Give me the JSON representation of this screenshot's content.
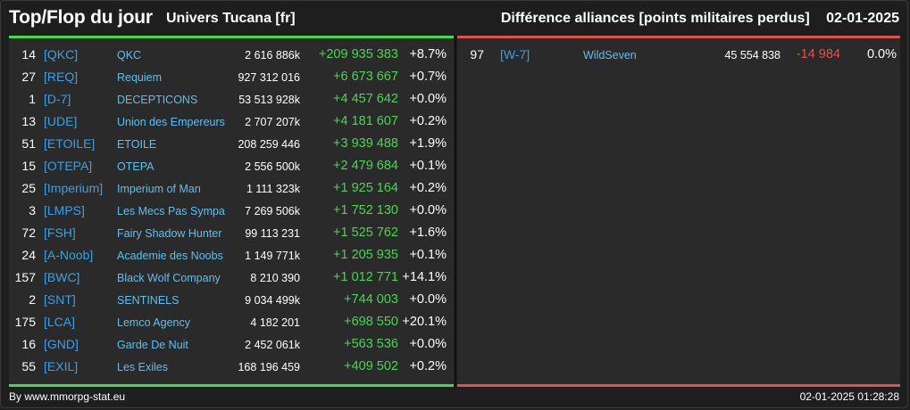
{
  "header": {
    "title": "Top/Flop du jour",
    "subtitle": "Univers Tucana [fr]",
    "category": "Différence alliances [points militaires perdus]",
    "date": "02-01-2025"
  },
  "top": [
    {
      "rank": "14",
      "tag": "[QKC]",
      "name": "QKC",
      "points": "2 616 886k",
      "diff": "+209 935 383",
      "pct": "+8.7%"
    },
    {
      "rank": "27",
      "tag": "[REQ]",
      "name": "Requiem",
      "points": "927 312 016",
      "diff": "+6 673 667",
      "pct": "+0.7%"
    },
    {
      "rank": "1",
      "tag": "[D-7]",
      "name": "DECEPTICONS",
      "points": "53 513 928k",
      "diff": "+4 457 642",
      "pct": "+0.0%"
    },
    {
      "rank": "13",
      "tag": "[UDE]",
      "name": "Union des Empereurs",
      "points": "2 707 207k",
      "diff": "+4 181 607",
      "pct": "+0.2%"
    },
    {
      "rank": "51",
      "tag": "[ETOILE]",
      "name": "ETOILE",
      "points": "208 259 446",
      "diff": "+3 939 488",
      "pct": "+1.9%"
    },
    {
      "rank": "15",
      "tag": "[OTEPA]",
      "name": "OTEPA",
      "points": "2 556 500k",
      "diff": "+2 479 684",
      "pct": "+0.1%"
    },
    {
      "rank": "25",
      "tag": "[Imperium]",
      "name": "Imperium of Man",
      "points": "1 111 323k",
      "diff": "+1 925 164",
      "pct": "+0.2%"
    },
    {
      "rank": "3",
      "tag": "[LMPS]",
      "name": "Les Mecs Pas Sympa",
      "points": "7 269 506k",
      "diff": "+1 752 130",
      "pct": "+0.0%"
    },
    {
      "rank": "72",
      "tag": "[FSH]",
      "name": "Fairy Shadow Hunter",
      "points": "99 113 231",
      "diff": "+1 525 762",
      "pct": "+1.6%"
    },
    {
      "rank": "24",
      "tag": "[A-Noob]",
      "name": "Academie des Noobs",
      "points": "1 149 771k",
      "diff": "+1 205 935",
      "pct": "+0.1%"
    },
    {
      "rank": "157",
      "tag": "[BWC]",
      "name": "Black Wolf Company",
      "points": "8 210 390",
      "diff": "+1 012 771",
      "pct": "+14.1%"
    },
    {
      "rank": "2",
      "tag": "[SNT]",
      "name": "SENTINELS",
      "points": "9 034 499k",
      "diff": "+744 003",
      "pct": "+0.0%"
    },
    {
      "rank": "175",
      "tag": "[LCA]",
      "name": "Lemco Agency",
      "points": "4 182 201",
      "diff": "+698 550",
      "pct": "+20.1%"
    },
    {
      "rank": "16",
      "tag": "[GND]",
      "name": "Garde De Nuit",
      "points": "2 452 061k",
      "diff": "+563 536",
      "pct": "+0.0%"
    },
    {
      "rank": "55",
      "tag": "[EXIL]",
      "name": "Les Exiles",
      "points": "168 196 459",
      "diff": "+409 502",
      "pct": "+0.2%"
    }
  ],
  "flop": [
    {
      "rank": "97",
      "tag": "[W-7]",
      "name": "WildSeven",
      "points": "45 554 838",
      "diff": "-14 984",
      "pct": "0.0%"
    }
  ],
  "footer": {
    "credit": "By www.mmorpg-stat.eu",
    "timestamp": "02-01-2025 01:28:28"
  },
  "colors": {
    "positive": "#46d94f",
    "negative": "#e0524d",
    "tag": "#3aa0e6",
    "name": "#5bc0f0"
  }
}
